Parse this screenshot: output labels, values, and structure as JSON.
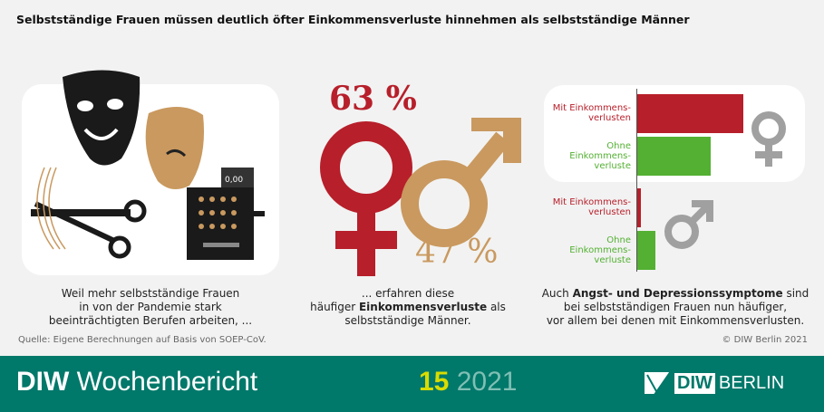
{
  "title": "Selbstständige Frauen müssen deutlich öfter Einkommensverluste hinnehmen als selbstständige Männer",
  "left": {
    "caption": [
      "Weil mehr selbstständige Frauen",
      "in von der Pandemie stark",
      "beeinträchtigten Berufen arbeiten, ..."
    ],
    "register_display": "0,00",
    "icons": [
      "theater-masks-icon",
      "scissors-icon",
      "cash-register-icon"
    ]
  },
  "middle": {
    "women_pct": "63 %",
    "men_pct": "47 %",
    "caption_pre": "... erfahren diese",
    "caption_mid1": "häufiger ",
    "caption_bold": "Einkommensverluste",
    "caption_mid2": " als",
    "caption_end": "selbstständige Männer.",
    "colors": {
      "women": "#b71f2a",
      "men": "#c9995f"
    }
  },
  "right": {
    "groups": [
      {
        "icon": "female-symbol-icon",
        "bars": [
          {
            "label1": "Mit Einkommens-",
            "label2": "verlusten",
            "label3": "",
            "level": 1.0,
            "color": "#b71f2a"
          },
          {
            "label1": "Ohne",
            "label2": "Einkommens-",
            "label3": "verluste",
            "level": 0.69,
            "color": "#53b032"
          }
        ]
      },
      {
        "icon": "male-symbol-icon",
        "bars": [
          {
            "label1": "Mit Einkommens-",
            "label2": "verlusten",
            "label3": "",
            "level": 0.03,
            "color": "#b71f2a"
          },
          {
            "label1": "Ohne",
            "label2": "Einkommens-",
            "label3": "verluste",
            "level": 0.17,
            "color": "#53b032"
          }
        ]
      }
    ],
    "caption_pre": "Auch ",
    "caption_bold": "Angst- und Depressionssymptome",
    "caption_post": " sind",
    "caption2": "bei selbstständigen Frauen nun häufiger,",
    "caption3": "vor allem bei denen mit Einkommensverlusten."
  },
  "source": "Quelle: Eigene Berechnungen auf Basis von SOEP-CoV.",
  "copyright": "© DIW Berlin 2021",
  "footer": {
    "brand_bold": "DIW",
    "brand_rest": " Wochenbericht",
    "issue": "15",
    "year": "2021",
    "logo_diw": "DIW",
    "logo_berlin": "BERLIN",
    "colors": {
      "bg": "#00786a",
      "issue": "#d9dc00",
      "year": "#7fbfb4"
    }
  }
}
